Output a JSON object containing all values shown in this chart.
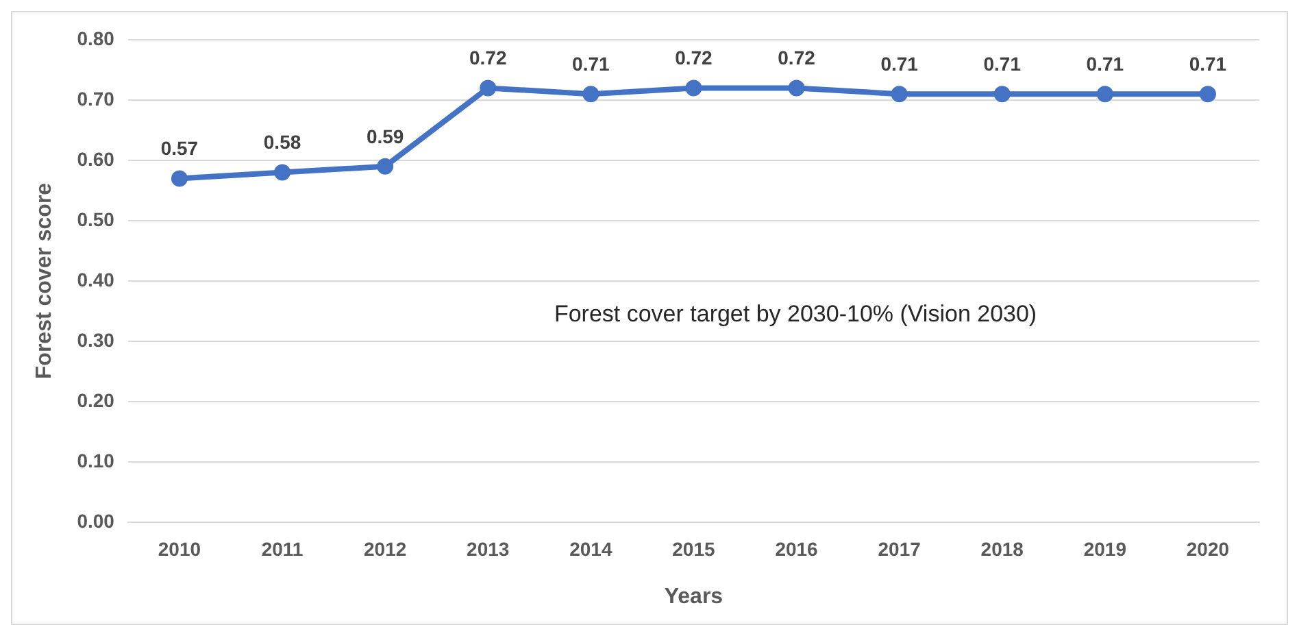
{
  "chart_data": {
    "type": "line",
    "xlabel": "Years",
    "ylabel": "Forest cover score",
    "categories": [
      "2010",
      "2011",
      "2012",
      "2013",
      "2014",
      "2015",
      "2016",
      "2017",
      "2018",
      "2019",
      "2020"
    ],
    "series": [
      {
        "color": "#4472c4",
        "values": [
          0.57,
          0.58,
          0.59,
          0.72,
          0.71,
          0.72,
          0.72,
          0.71,
          0.71,
          0.71,
          0.71
        ]
      }
    ],
    "ylim": [
      0,
      0.8
    ],
    "yticks": [
      {
        "value": 0,
        "label": "0.00"
      },
      {
        "value": 0.1,
        "label": "0.10"
      },
      {
        "value": 0.2,
        "label": "0.20"
      },
      {
        "value": 0.3,
        "label": "0.30"
      },
      {
        "value": 0.4,
        "label": "0.40"
      },
      {
        "value": 0.5,
        "label": "0.50"
      },
      {
        "value": 0.6,
        "label": "0.60"
      },
      {
        "value": 0.7,
        "label": "0.70"
      },
      {
        "value": 0.8,
        "label": "0.80"
      }
    ],
    "grid": "y",
    "legend": false,
    "marker": "circle",
    "line_style": "solid",
    "data_labels": true,
    "annotations": [
      "Forest cover target by 2030-10% (Vision 2030)"
    ]
  }
}
